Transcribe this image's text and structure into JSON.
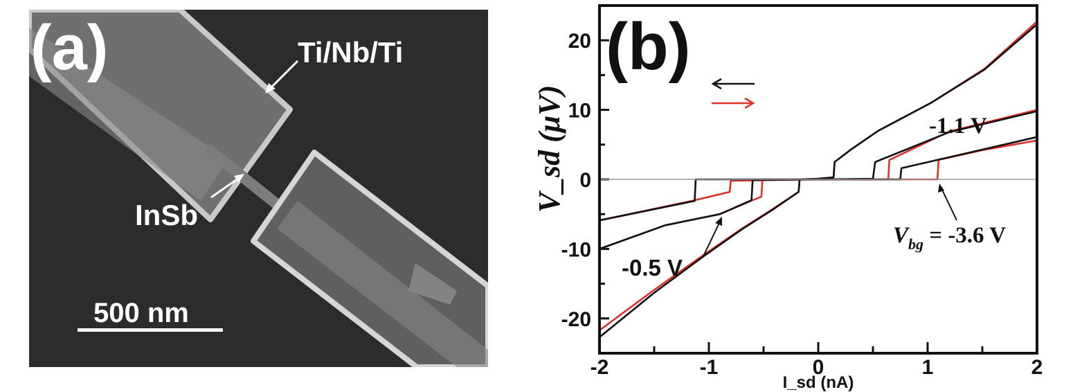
{
  "panel_a": {
    "label": "(a)",
    "electrode_label": "Ti/Nb/Ti",
    "nanowire_label": "InSb",
    "scale_bar_label": "500 nm"
  },
  "chart_data": {
    "type": "line",
    "panel_label": "(b)",
    "xlabel": "I_sd (nA)",
    "ylabel": "V_sd (μV)",
    "xlim": [
      -2,
      2
    ],
    "ylim": [
      -25,
      25
    ],
    "xticks": [
      -2,
      -1,
      0,
      1,
      2
    ],
    "xtick_labels": [
      "-2",
      "-1",
      "0",
      "1",
      "2"
    ],
    "yticks": [
      20,
      10,
      0,
      -10,
      -20
    ],
    "ytick_labels": [
      "20",
      "10",
      "0",
      "-10",
      "-20"
    ],
    "grid": false,
    "zero_line": true,
    "sweep_legend": [
      {
        "direction": "left",
        "color": "#111111"
      },
      {
        "direction": "right",
        "color": "#e0302a"
      }
    ],
    "annotations": [
      {
        "text": "-1.1 V",
        "gate": "-1.1 V"
      },
      {
        "text": "-0.5 V",
        "gate": "-0.5 V"
      },
      {
        "text_main": "V",
        "text_sub": "bg",
        "text_rest": " = -3.6 V",
        "gate": "-3.6 V"
      }
    ],
    "series": [
      {
        "gate": "-1.1 V",
        "sweep": "left",
        "color": "#111111",
        "x": [
          -2,
          -1.5,
          -1.06,
          -0.7,
          -0.42,
          -0.18,
          -0.17,
          0,
          0.14,
          0.15,
          0.3,
          0.55,
          1.03,
          1.52,
          2
        ],
        "y": [
          -22.7,
          -16.3,
          -11.2,
          -7.2,
          -4.4,
          -1.8,
          0,
          0.1,
          0.3,
          2.5,
          4.3,
          7.0,
          11.0,
          15.8,
          22.3
        ]
      },
      {
        "gate": "-1.1 V",
        "sweep": "right",
        "color": "#e0302a",
        "x": [
          -2,
          -1.5,
          -1.06,
          -0.7,
          -0.42,
          -0.18,
          -0.17,
          0,
          0.14,
          0.15,
          0.3,
          0.55,
          1.03,
          1.52,
          2
        ],
        "y": [
          -21.7,
          -15.9,
          -11.0,
          -7.1,
          -4.3,
          -1.8,
          0,
          0.1,
          0.3,
          2.5,
          4.3,
          7.0,
          11.0,
          15.9,
          22.7
        ]
      },
      {
        "gate": "-0.5 V",
        "sweep": "left",
        "color": "#111111",
        "x": [
          -2,
          -1.4,
          -0.9,
          -0.61,
          -0.6,
          0,
          0.5,
          0.52,
          1.2,
          2
        ],
        "y": [
          -10,
          -6.6,
          -5,
          -3,
          -0.1,
          0,
          0.1,
          2.5,
          6.8,
          9.8
        ]
      },
      {
        "gate": "-0.5 V",
        "sweep": "right",
        "color": "#e0302a",
        "x": [
          -2,
          -1.4,
          -0.9,
          -0.6,
          -0.52,
          -0.51,
          0,
          0.64,
          0.65,
          1.2,
          2
        ],
        "y": [
          -10,
          -6.6,
          -5,
          -3,
          -2.5,
          0,
          0,
          0,
          2.8,
          6.9,
          10
        ]
      },
      {
        "gate": "-3.6 V",
        "sweep": "left",
        "color": "#111111",
        "x": [
          -2,
          -1.13,
          -1.12,
          0,
          0.75,
          0.76,
          1.2,
          2
        ],
        "y": [
          -5.9,
          -3.1,
          0,
          0,
          0,
          1.6,
          3.2,
          6.1
        ]
      },
      {
        "gate": "-3.6 V",
        "sweep": "right",
        "color": "#e0302a",
        "x": [
          -2,
          -1.13,
          -0.81,
          -0.8,
          0,
          1.09,
          1.1,
          1.5,
          2
        ],
        "y": [
          -5.9,
          -3.0,
          -1.8,
          -0.2,
          0,
          0,
          2.8,
          4.2,
          5.6
        ]
      }
    ]
  }
}
